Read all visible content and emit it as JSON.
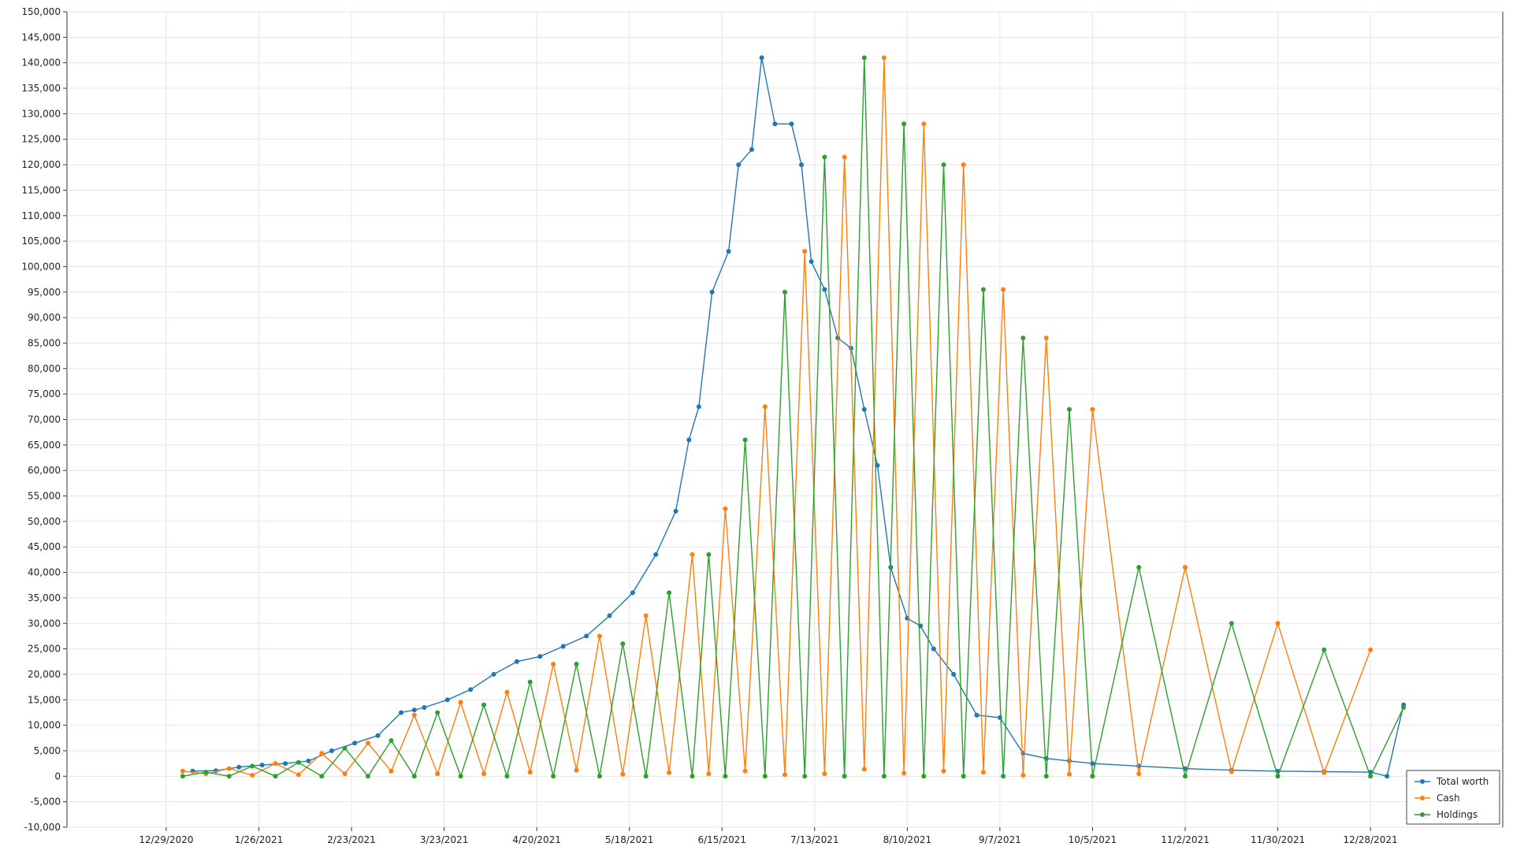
{
  "chart_data": {
    "type": "line",
    "title": "",
    "xlabel": "",
    "ylabel": "",
    "ylim": [
      -10000,
      150000
    ],
    "y_ticks": [
      -10000,
      -5000,
      0,
      5000,
      10000,
      15000,
      20000,
      25000,
      30000,
      35000,
      40000,
      45000,
      50000,
      55000,
      60000,
      65000,
      70000,
      75000,
      80000,
      85000,
      90000,
      95000,
      100000,
      105000,
      110000,
      115000,
      120000,
      125000,
      130000,
      135000,
      140000,
      145000,
      150000
    ],
    "x_ticks": [
      "12/29/2020",
      "1/26/2021",
      "2/23/2021",
      "3/23/2021",
      "4/20/2021",
      "5/18/2021",
      "6/15/2021",
      "7/13/2021",
      "8/10/2021",
      "9/7/2021",
      "10/5/2021",
      "11/2/2021",
      "11/30/2021",
      "12/28/2021"
    ],
    "grid": true,
    "legend_position": "bottom-right",
    "series": [
      {
        "name": "Total worth",
        "color": "#1f77b4",
        "x": [
          "2021-01-06",
          "2021-01-13",
          "2021-01-20",
          "2021-01-27",
          "2021-02-03",
          "2021-02-10",
          "2021-02-17",
          "2021-02-24",
          "2021-03-03",
          "2021-03-10",
          "2021-03-14",
          "2021-03-17",
          "2021-03-24",
          "2021-03-31",
          "2021-04-07",
          "2021-04-14",
          "2021-04-21",
          "2021-04-28",
          "2021-05-05",
          "2021-05-12",
          "2021-05-19",
          "2021-05-26",
          "2021-06-01",
          "2021-06-05",
          "2021-06-08",
          "2021-06-12",
          "2021-06-17",
          "2021-06-20",
          "2021-06-24",
          "2021-06-27",
          "2021-07-01",
          "2021-07-06",
          "2021-07-09",
          "2021-07-12",
          "2021-07-16",
          "2021-07-20",
          "2021-07-24",
          "2021-07-28",
          "2021-08-01",
          "2021-08-05",
          "2021-08-10",
          "2021-08-14",
          "2021-08-18",
          "2021-08-24",
          "2021-08-31",
          "2021-09-07",
          "2021-09-14",
          "2021-09-21",
          "2021-09-28",
          "2021-10-05",
          "2021-10-19",
          "2021-11-02",
          "2021-11-16",
          "2021-11-30",
          "2021-12-14",
          "2021-12-28",
          "2022-01-02",
          "2022-01-07"
        ],
        "values": [
          1000,
          1100,
          1800,
          2200,
          2500,
          3000,
          5000,
          6500,
          8000,
          12500,
          13000,
          13500,
          15000,
          17000,
          20000,
          22500,
          23500,
          25500,
          27500,
          31500,
          36000,
          43500,
          52000,
          66000,
          72500,
          95000,
          103000,
          120000,
          123000,
          141000,
          128000,
          128000,
          120000,
          101000,
          95500,
          86000,
          84000,
          72000,
          61000,
          41000,
          31000,
          29500,
          25000,
          20000,
          12000,
          11500,
          4500,
          3500,
          3000,
          2500,
          2000,
          1500,
          1200,
          1000,
          900,
          800,
          0,
          14000
        ]
      },
      {
        "name": "Cash",
        "color": "#ff7f0e",
        "x": [
          "2021-01-03",
          "2021-01-10",
          "2021-01-17",
          "2021-01-24",
          "2021-01-31",
          "2021-02-07",
          "2021-02-14",
          "2021-02-21",
          "2021-02-28",
          "2021-03-07",
          "2021-03-14",
          "2021-03-21",
          "2021-03-28",
          "2021-04-04",
          "2021-04-11",
          "2021-04-18",
          "2021-04-25",
          "2021-05-02",
          "2021-05-09",
          "2021-05-16",
          "2021-05-23",
          "2021-05-30",
          "2021-06-06",
          "2021-06-11",
          "2021-06-16",
          "2021-06-22",
          "2021-06-28",
          "2021-07-04",
          "2021-07-10",
          "2021-07-16",
          "2021-07-22",
          "2021-07-28",
          "2021-08-03",
          "2021-08-09",
          "2021-08-15",
          "2021-08-21",
          "2021-08-27",
          "2021-09-02",
          "2021-09-08",
          "2021-09-14",
          "2021-09-21",
          "2021-09-28",
          "2021-10-05",
          "2021-10-19",
          "2021-11-02",
          "2021-11-16",
          "2021-11-30",
          "2021-12-14",
          "2021-12-28"
        ],
        "values": [
          1000,
          500,
          1500,
          200,
          2500,
          300,
          4500,
          500,
          6500,
          1000,
          12000,
          500,
          14500,
          500,
          16500,
          800,
          22000,
          1200,
          27500,
          400,
          31500,
          700,
          43500,
          500,
          52500,
          1000,
          72500,
          300,
          103000,
          500,
          121500,
          1400,
          141000,
          600,
          128000,
          1000,
          120000,
          800,
          95500,
          200,
          86000,
          400,
          72000,
          500,
          41000,
          900,
          30000,
          700,
          24800
        ]
      },
      {
        "name": "Holdings",
        "color": "#2ca02c",
        "x": [
          "2021-01-03",
          "2021-01-10",
          "2021-01-17",
          "2021-01-24",
          "2021-01-31",
          "2021-02-07",
          "2021-02-14",
          "2021-02-21",
          "2021-02-28",
          "2021-03-07",
          "2021-03-14",
          "2021-03-21",
          "2021-03-28",
          "2021-04-04",
          "2021-04-11",
          "2021-04-18",
          "2021-04-25",
          "2021-05-02",
          "2021-05-09",
          "2021-05-16",
          "2021-05-23",
          "2021-05-30",
          "2021-06-06",
          "2021-06-11",
          "2021-06-16",
          "2021-06-22",
          "2021-06-28",
          "2021-07-04",
          "2021-07-10",
          "2021-07-16",
          "2021-07-22",
          "2021-07-28",
          "2021-08-03",
          "2021-08-09",
          "2021-08-15",
          "2021-08-21",
          "2021-08-27",
          "2021-09-02",
          "2021-09-08",
          "2021-09-14",
          "2021-09-21",
          "2021-09-28",
          "2021-10-05",
          "2021-10-19",
          "2021-11-02",
          "2021-11-16",
          "2021-11-30",
          "2021-12-14",
          "2021-12-28",
          "2022-01-07"
        ],
        "values": [
          0,
          800,
          0,
          2000,
          0,
          2700,
          0,
          5500,
          0,
          7000,
          0,
          12500,
          0,
          14000,
          0,
          18500,
          0,
          22000,
          0,
          26000,
          0,
          36000,
          0,
          43500,
          0,
          66000,
          0,
          95000,
          0,
          121500,
          0,
          141000,
          0,
          128000,
          0,
          120000,
          0,
          95500,
          0,
          86000,
          0,
          72000,
          0,
          41000,
          0,
          30000,
          0,
          24800,
          0,
          13500
        ]
      }
    ]
  }
}
